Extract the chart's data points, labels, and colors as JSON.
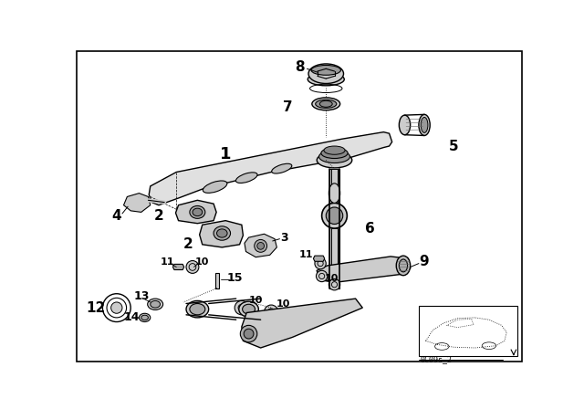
{
  "background_color": "#ffffff",
  "border_color": "#000000",
  "line_color": "#000000",
  "figwidth": 6.4,
  "figheight": 4.48,
  "dpi": 100
}
